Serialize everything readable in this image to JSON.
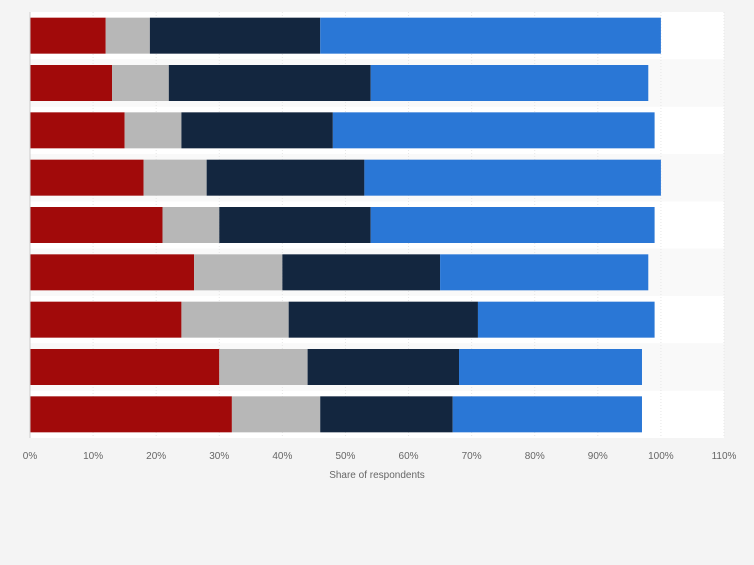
{
  "chart_data": {
    "type": "bar",
    "orientation": "horizontal",
    "stacked": true,
    "title": "",
    "xlabel": "Share of respondents",
    "ylabel": "",
    "xlim": [
      0,
      110
    ],
    "x_tick_labels": [
      "0%",
      "10%",
      "20%",
      "30%",
      "40%",
      "50%",
      "60%",
      "70%",
      "80%",
      "90%",
      "100%",
      "110%"
    ],
    "categories": [
      "",
      "",
      "",
      "",
      "",
      "",
      "",
      "",
      ""
    ],
    "series": [
      {
        "color": "#a10a0a",
        "values": [
          12,
          13,
          15,
          18,
          21,
          26,
          24,
          30,
          32
        ]
      },
      {
        "color": "#b7b7b7",
        "values": [
          7,
          9,
          9,
          10,
          9,
          14,
          17,
          14,
          14
        ]
      },
      {
        "color": "#13263f",
        "values": [
          27,
          32,
          24,
          25,
          24,
          25,
          30,
          24,
          21
        ]
      },
      {
        "color": "#2a77d6",
        "values": [
          54,
          44,
          51,
          47,
          45,
          33,
          28,
          29,
          30
        ]
      }
    ],
    "grid": true,
    "legend": "none"
  }
}
